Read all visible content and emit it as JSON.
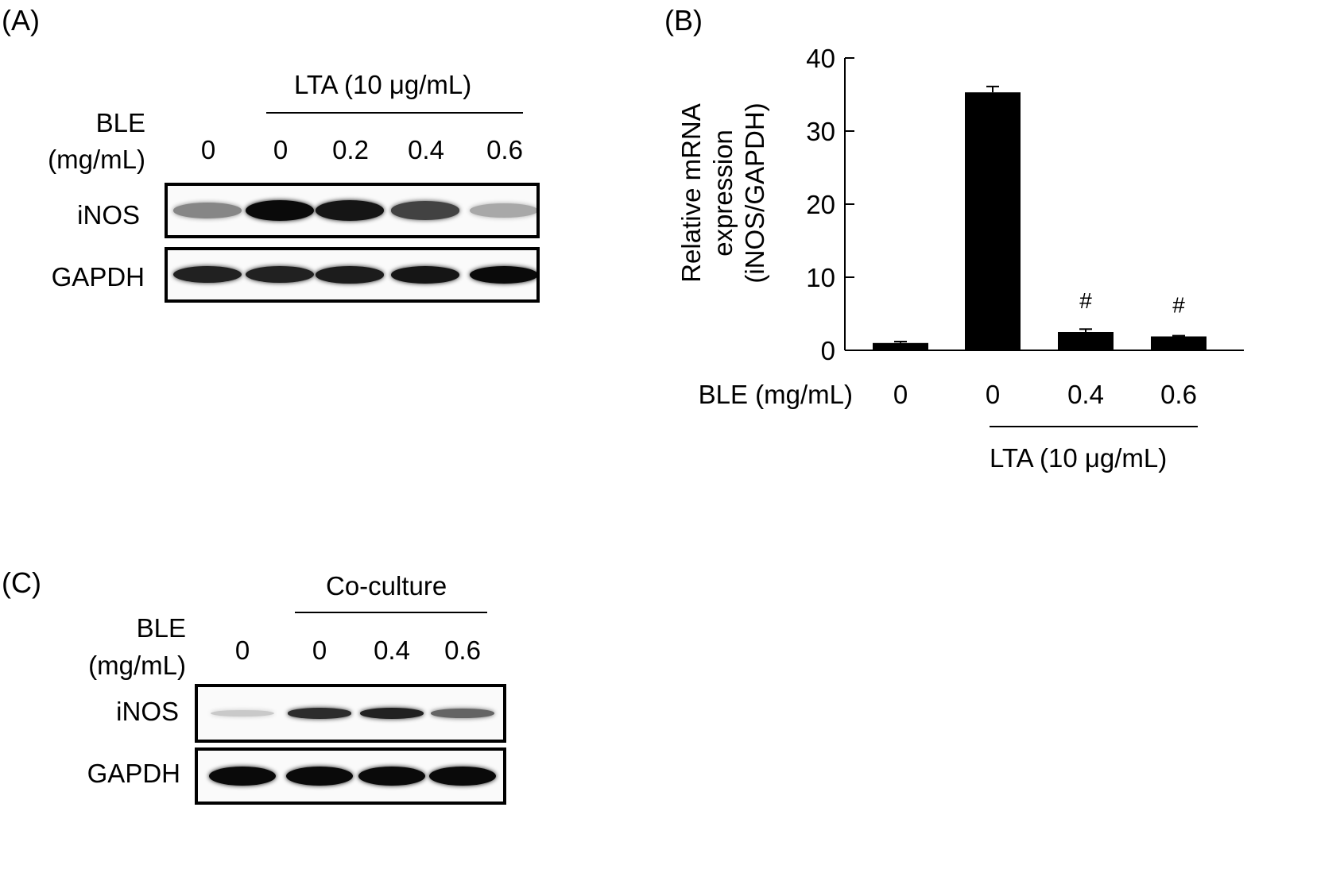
{
  "panel_a": {
    "panel_label": "(A)",
    "treatment_label": "LTA (10 μg/mL)",
    "dose_label_line1": "BLE",
    "dose_label_line2": "(mg/mL)",
    "doses": [
      "0",
      "0",
      "0.2",
      "0.4",
      "0.6"
    ],
    "blots": [
      {
        "label": "iNOS",
        "band_intensity": [
          0.45,
          1.0,
          0.95,
          0.75,
          0.3
        ]
      },
      {
        "label": "GAPDH",
        "band_intensity": [
          0.9,
          0.9,
          0.92,
          0.95,
          1.0
        ]
      }
    ]
  },
  "panel_c": {
    "panel_label": "(C)",
    "treatment_label": "Co-culture",
    "dose_label_line1": "BLE",
    "dose_label_line2": "(mg/mL)",
    "doses": [
      "0",
      "0",
      "0.4",
      "0.6"
    ],
    "blots": [
      {
        "label": "iNOS",
        "band_intensity": [
          0.15,
          0.85,
          0.9,
          0.6
        ]
      },
      {
        "label": "GAPDH",
        "band_intensity": [
          1.0,
          1.0,
          1.0,
          1.0
        ]
      }
    ]
  },
  "chart_data": {
    "type": "bar",
    "panel_label": "(B)",
    "categories": [
      "0",
      "0",
      "0.4",
      "0.6"
    ],
    "values": [
      1.0,
      35.3,
      2.5,
      1.9
    ],
    "errors": [
      0.2,
      0.8,
      0.4,
      0.1
    ],
    "annotations": [
      "",
      "",
      "#",
      "#"
    ],
    "ylabel_lines": [
      "Relative mRNA",
      "expression",
      "(iNOS/GAPDH)"
    ],
    "xlabel": "BLE (mg/mL)",
    "group_label": "LTA (10 μg/mL)",
    "ylim": [
      0,
      40
    ],
    "yticks": [
      0,
      10,
      20,
      30,
      40
    ],
    "bar_color": "#000000",
    "grid": false
  }
}
